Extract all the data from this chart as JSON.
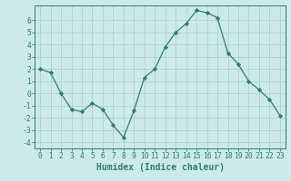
{
  "x": [
    0,
    1,
    2,
    3,
    4,
    5,
    6,
    7,
    8,
    9,
    10,
    11,
    12,
    13,
    14,
    15,
    16,
    17,
    18,
    19,
    20,
    21,
    22,
    23
  ],
  "y": [
    2.0,
    1.7,
    0.0,
    -1.3,
    -1.5,
    -0.8,
    -1.3,
    -2.6,
    -3.6,
    -1.4,
    1.3,
    2.0,
    3.8,
    5.0,
    5.7,
    6.8,
    6.6,
    6.2,
    3.3,
    2.4,
    1.0,
    0.3,
    -0.5,
    -1.8
  ],
  "line_color": "#2e7d6e",
  "marker": "D",
  "marker_size": 2.2,
  "bg_color": "#cdeaea",
  "grid_color": "#b0cfcf",
  "xlabel": "Humidex (Indice chaleur)",
  "ylim": [
    -4.5,
    7.2
  ],
  "xlim": [
    -0.5,
    23.5
  ],
  "yticks": [
    -4,
    -3,
    -2,
    -1,
    0,
    1,
    2,
    3,
    4,
    5,
    6
  ],
  "xticks": [
    0,
    1,
    2,
    3,
    4,
    5,
    6,
    7,
    8,
    9,
    10,
    11,
    12,
    13,
    14,
    15,
    16,
    17,
    18,
    19,
    20,
    21,
    22,
    23
  ],
  "tick_color": "#2e7d6e",
  "label_color": "#2e7d6e",
  "spine_color": "#2e7d6e",
  "xlabel_fontsize": 7.0,
  "tick_fontsize": 5.8
}
